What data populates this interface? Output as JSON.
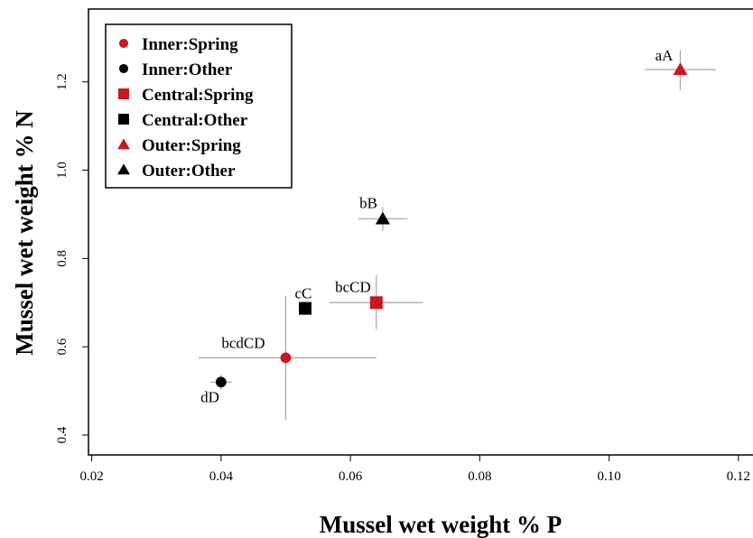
{
  "chart_data": {
    "type": "scatter",
    "title": "",
    "xlabel": "Mussel wet weight % P",
    "ylabel": "Mussel wet weight % N",
    "xlim": [
      0.0195,
      0.1235
    ],
    "ylim": [
      0.355,
      1.365
    ],
    "x_ticks": [
      0.02,
      0.04,
      0.06,
      0.08,
      0.1,
      0.12
    ],
    "x_tick_labels": [
      "0.02",
      "0.04",
      "0.06",
      "0.08",
      "0.10",
      "0.12"
    ],
    "y_ticks": [
      0.4,
      0.6,
      0.8,
      1.0,
      1.2
    ],
    "y_tick_labels": [
      "0.4",
      "0.6",
      "0.8",
      "1.0",
      "1.2"
    ],
    "grid": false,
    "legend_position": "top-left",
    "colors": {
      "spring": "#c8191e",
      "other": "#000000",
      "error_bar": "#a6a6a6"
    },
    "series": [
      {
        "name": "Inner:Spring",
        "marker": "circle",
        "color": "#c8191e",
        "points": [
          {
            "x": 0.05,
            "y": 0.575,
            "xerr": [
              0.0365,
              0.064
            ],
            "yerr": [
              0.435,
              0.715
            ],
            "label": "bcdCD"
          }
        ]
      },
      {
        "name": "Inner:Other",
        "marker": "circle",
        "color": "#000000",
        "points": [
          {
            "x": 0.04,
            "y": 0.52,
            "xerr": [
              0.0383,
              0.0417
            ],
            "yerr": [
              0.503,
              0.537
            ],
            "label": "dD"
          }
        ]
      },
      {
        "name": "Central:Spring",
        "marker": "square",
        "color": "#c8191e",
        "points": [
          {
            "x": 0.064,
            "y": 0.7,
            "xerr": [
              0.0568,
              0.0712
            ],
            "yerr": [
              0.64,
              0.762
            ],
            "label": "bcCD"
          }
        ]
      },
      {
        "name": "Central:Other",
        "marker": "square",
        "color": "#000000",
        "points": [
          {
            "x": 0.053,
            "y": 0.687,
            "xerr": [
              0.0522,
              0.0538
            ],
            "yerr": [
              0.672,
              0.702
            ],
            "label": "cC"
          }
        ]
      },
      {
        "name": "Outer:Spring",
        "marker": "triangle",
        "color": "#c8191e",
        "points": [
          {
            "x": 0.111,
            "y": 1.228,
            "xerr": [
              0.1055,
              0.1165
            ],
            "yerr": [
              1.182,
              1.272
            ],
            "label": "aA"
          }
        ]
      },
      {
        "name": "Outer:Other",
        "marker": "triangle",
        "color": "#000000",
        "points": [
          {
            "x": 0.065,
            "y": 0.89,
            "xerr": [
              0.0612,
              0.0688
            ],
            "yerr": [
              0.863,
              0.917
            ],
            "label": "bB"
          }
        ]
      }
    ]
  }
}
